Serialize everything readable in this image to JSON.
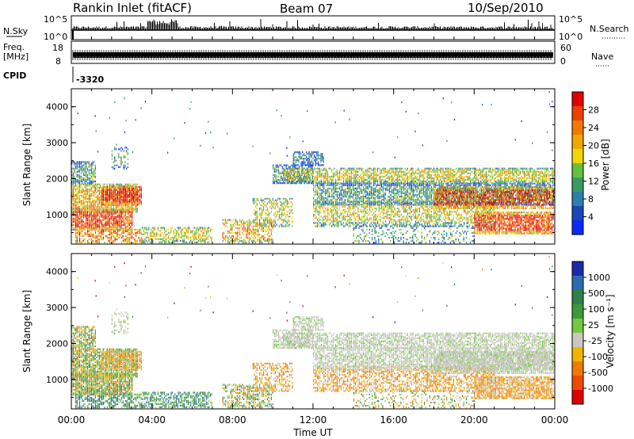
{
  "header": {
    "title": "Rankin Inlet (fitACF)",
    "beam": "Beam 07",
    "date": "10/Sep/2010"
  },
  "top_panels": {
    "nsky_label": "N.Sky",
    "nsky_ticks": [
      "10^5",
      "10^0"
    ],
    "nsearch_label": "N.Search",
    "nsearch_ticks": [
      "10^5",
      "10^0"
    ],
    "freq_label_line1": "Freq.",
    "freq_label_line2": "[MHz]",
    "freq_ticks": [
      "18",
      "8"
    ],
    "nave_label": "Nave",
    "nave_ticks": [
      "60",
      "0"
    ],
    "cpid_label": "CPID",
    "cpid_value": "-3320"
  },
  "chart_data": [
    {
      "type": "heatmap",
      "name": "power-panel",
      "ylabel": "Slant Range [km]",
      "xlabel": "",
      "ylim": [
        180,
        4500
      ],
      "yticks": [
        1000,
        2000,
        3000,
        4000
      ],
      "xlim_hours": [
        0,
        24
      ],
      "colorbar_label": "Power [dB]",
      "colorbar_ticks": [
        "4",
        "8",
        "12",
        "16",
        "20",
        "24",
        "28"
      ],
      "colorbar_colors": [
        "#0a2aff",
        "#1a46b8",
        "#2e7fb0",
        "#3a9a63",
        "#63c23a",
        "#f2d600",
        "#f0a800",
        "#f47a00",
        "#ee4000",
        "#e20000"
      ]
    },
    {
      "type": "heatmap",
      "name": "velocity-panel",
      "ylabel": "Slant Range [km]",
      "xlabel": "Time UT",
      "ylim": [
        180,
        4500
      ],
      "yticks": [
        1000,
        2000,
        3000,
        4000
      ],
      "xlim_hours": [
        0,
        24
      ],
      "xtick_labels": [
        "00:00",
        "04:00",
        "08:00",
        "12:00",
        "16:00",
        "20:00",
        "00:00"
      ],
      "colorbar_label": "Velocity [m s⁻¹]",
      "colorbar_ticks": [
        "1000",
        "500",
        "100",
        "25",
        "-25",
        "-100",
        "-500",
        "-1000"
      ],
      "colorbar_colors": [
        "#1a2aaa",
        "#2e6ab0",
        "#2f7f4a",
        "#3c9a3a",
        "#74c840",
        "#c8c8c0",
        "#f0b400",
        "#f07a00",
        "#ee4a00",
        "#e00000"
      ]
    }
  ]
}
